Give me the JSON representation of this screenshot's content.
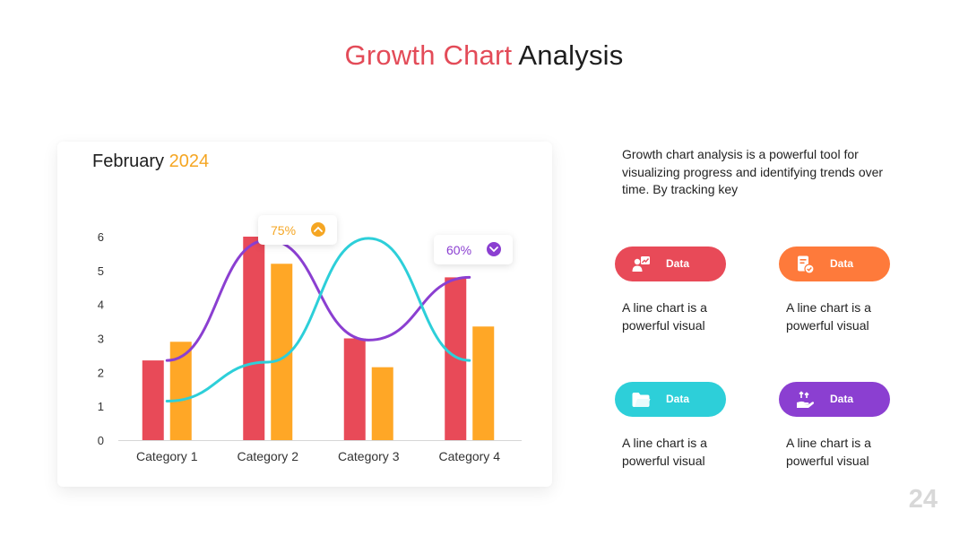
{
  "slide": {
    "title_accent": "Growth Chart",
    "title_rest": " Analysis",
    "page_number": "24"
  },
  "card": {
    "month": "February",
    "year": "2024"
  },
  "description": "Growth chart analysis is a powerful tool for visualizing progress and identifying trends over time. By tracking key",
  "pills": [
    {
      "label": "Data",
      "color": "#e84a58",
      "icon": "user-chart-icon",
      "text": "A line chart is a powerful visual"
    },
    {
      "label": "Data",
      "color": "#fe7a3b",
      "icon": "document-check-icon",
      "text": "A line chart is a powerful visual"
    },
    {
      "label": "Data",
      "color": "#2dcfd9",
      "icon": "folder-icon",
      "text": "A line chart is a powerful visual"
    },
    {
      "label": "Data",
      "color": "#8b3fd1",
      "icon": "hand-growth-icon",
      "text": "A line chart is a powerful visual"
    }
  ],
  "chart_data": {
    "type": "bar",
    "categories": [
      "Category 1",
      "Category 2",
      "Category 3",
      "Category 4"
    ],
    "series": [
      {
        "values": [
          2.35,
          6.0,
          3.0,
          4.8
        ],
        "color": "#e84a58"
      },
      {
        "values": [
          2.9,
          5.2,
          2.15,
          3.35
        ],
        "color": "#ffa726"
      }
    ],
    "lines": [
      {
        "color": "#8b3fd1",
        "points": [
          [
            1,
            2.35
          ],
          [
            2,
            5.9
          ],
          [
            3,
            2.95
          ],
          [
            4,
            4.8
          ]
        ]
      },
      {
        "color": "#2dcfd9",
        "points": [
          [
            1,
            1.15
          ],
          [
            2,
            2.3
          ],
          [
            3,
            5.95
          ],
          [
            4,
            2.35
          ]
        ]
      }
    ],
    "yticks": [
      0,
      1,
      2,
      3,
      4,
      5,
      6
    ],
    "ylim": [
      0,
      6
    ],
    "annotations": [
      {
        "text": "75%",
        "color": "#f5a623",
        "icon": "chevron-up-icon"
      },
      {
        "text": "60%",
        "color": "#8b3fd1",
        "icon": "chevron-down-icon"
      }
    ],
    "grid": false
  }
}
